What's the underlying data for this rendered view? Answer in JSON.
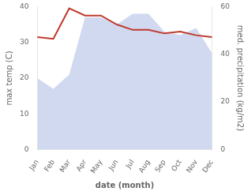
{
  "chart_data": {
    "type": "line",
    "categories": [
      "Jan",
      "Feb",
      "Mar",
      "Apr",
      "May",
      "Jun",
      "Jul",
      "Aug",
      "Sep",
      "Oct",
      "Nov",
      "Dec"
    ],
    "series": [
      {
        "type": "area",
        "color": "#b8c4e8",
        "values": [
          20,
          17,
          21,
          37,
          37,
          35,
          38,
          38,
          33,
          32,
          34,
          27
        ]
      },
      {
        "type": "line",
        "color": "#c0392b",
        "values": [
          31.5,
          31.0,
          39.5,
          37.5,
          37.5,
          35.0,
          33.5,
          33.5,
          32.5,
          33.0,
          32.0,
          31.5
        ]
      }
    ],
    "xlabel": "date (month)",
    "ylabel": "max temp (C)",
    "y2label": "med. precipitation (kg/m2)",
    "ylim": [
      0,
      40
    ],
    "yticks": [
      0,
      10,
      20,
      30,
      40
    ],
    "y2lim": [
      0,
      60
    ],
    "y2ticks": [
      0,
      20,
      40,
      60
    ],
    "grid": false
  }
}
